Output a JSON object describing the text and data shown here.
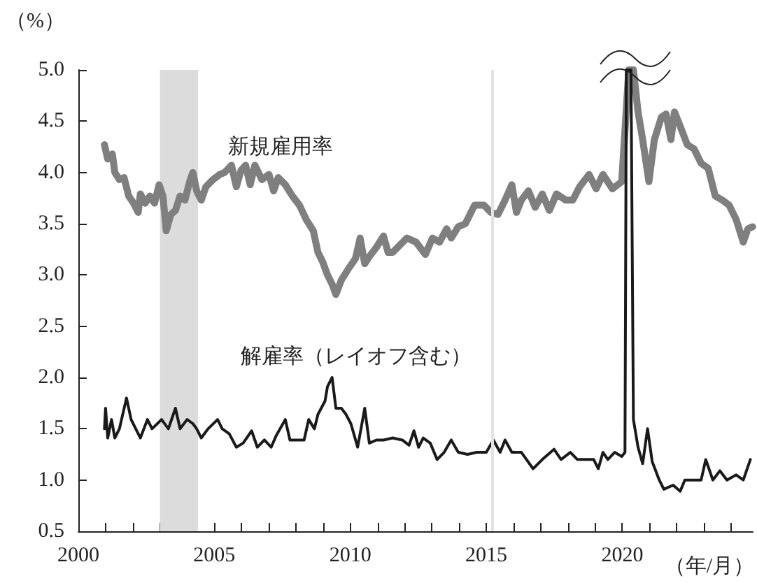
{
  "chart_data": {
    "type": "line",
    "ylabel": "（%）",
    "xlabel": "（年/月）",
    "xlim": [
      2000,
      2024.8
    ],
    "xticks": [
      2000,
      {
        "value": 2001,
        "label": null
      },
      {
        "value": 2002,
        "label": null
      },
      {
        "value": 2003,
        "label": null
      },
      {
        "value": 2004,
        "label": null
      },
      2005,
      {
        "value": 2006,
        "label": null
      },
      {
        "value": 2007,
        "label": null
      },
      {
        "value": 2008,
        "label": null
      },
      {
        "value": 2009,
        "label": null
      },
      2010,
      {
        "value": 2011,
        "label": null
      },
      {
        "value": 2012,
        "label": null
      },
      {
        "value": 2013,
        "label": null
      },
      {
        "value": 2014,
        "label": null
      },
      2015,
      {
        "value": 2016,
        "label": null
      },
      {
        "value": 2017,
        "label": null
      },
      {
        "value": 2018,
        "label": null
      },
      {
        "value": 2019,
        "label": null
      },
      2020,
      {
        "value": 2021,
        "label": null
      },
      {
        "value": 2022,
        "label": null
      },
      {
        "value": 2023,
        "label": null
      },
      {
        "value": 2024,
        "label": null
      }
    ],
    "ylim": [
      0.5,
      5
    ],
    "yticks": [
      0.5,
      {
        "value": 1,
        "label": "1.0"
      },
      1.5,
      {
        "value": 2,
        "label": "2.0"
      },
      2.5,
      {
        "value": 3,
        "label": "3.0"
      },
      3.5,
      {
        "value": 4,
        "label": "4.0"
      },
      4.5,
      {
        "value": 5,
        "label": "5.0"
      }
    ],
    "grid": false,
    "legend": false,
    "marker": "none",
    "line_style": "solid",
    "bands": [
      {
        "axis": "x",
        "from": 2003.0,
        "to": 2004.4,
        "color": "#dcdcdc"
      }
    ],
    "ref_lines": [
      {
        "axis": "x",
        "value": 2015.2,
        "color": "#e3e3e3"
      }
    ],
    "series": [
      {
        "name": "新規雇用率",
        "color": "#7f7f7f",
        "x": [
          2000.96,
          2001.08,
          2001.25,
          2001.34,
          2001.51,
          2001.68,
          2001.85,
          2002.03,
          2002.2,
          2002.28,
          2002.46,
          2002.63,
          2002.8,
          2002.97,
          2003.11,
          2003.23,
          2003.4,
          2003.57,
          2003.74,
          2003.92,
          2004.09,
          2004.21,
          2004.35,
          2004.52,
          2004.69,
          2004.95,
          2005.2,
          2005.38,
          2005.63,
          2005.81,
          2005.98,
          2006.15,
          2006.32,
          2006.49,
          2006.75,
          2007.01,
          2007.18,
          2007.35,
          2007.61,
          2007.87,
          2008.13,
          2008.38,
          2008.64,
          2008.81,
          2008.98,
          2009.16,
          2009.33,
          2009.47,
          2009.67,
          2009.93,
          2010.19,
          2010.36,
          2010.53,
          2010.7,
          2010.96,
          2011.22,
          2011.39,
          2011.56,
          2012.08,
          2012.42,
          2012.76,
          2013.02,
          2013.28,
          2013.54,
          2013.71,
          2013.97,
          2014.23,
          2014.57,
          2014.91,
          2015.17,
          2015.43,
          2015.69,
          2015.94,
          2016.11,
          2016.29,
          2016.55,
          2016.8,
          2017.06,
          2017.32,
          2017.58,
          2017.92,
          2018.18,
          2018.43,
          2018.78,
          2019.04,
          2019.29,
          2019.64,
          2019.98,
          2020.24,
          2020.41,
          2020.58,
          2020.75,
          2020.98,
          2021.18,
          2021.44,
          2021.61,
          2021.79,
          2021.92,
          2022.13,
          2022.39,
          2022.64,
          2022.9,
          2023.16,
          2023.42,
          2023.68,
          2023.93,
          2024.19,
          2024.45,
          2024.62,
          2024.79
        ],
        "values": [
          4.27,
          4.13,
          4.18,
          4.0,
          3.93,
          3.95,
          3.77,
          3.7,
          3.61,
          3.79,
          3.7,
          3.77,
          3.7,
          3.88,
          3.77,
          3.43,
          3.59,
          3.63,
          3.77,
          3.73,
          3.91,
          4.0,
          3.82,
          3.73,
          3.86,
          3.93,
          3.98,
          4.0,
          4.07,
          3.86,
          4.02,
          4.07,
          3.88,
          4.07,
          3.93,
          3.98,
          3.82,
          3.95,
          3.88,
          3.77,
          3.68,
          3.54,
          3.43,
          3.22,
          3.13,
          3.0,
          2.91,
          2.81,
          2.95,
          3.06,
          3.16,
          3.36,
          3.11,
          3.18,
          3.27,
          3.38,
          3.22,
          3.22,
          3.36,
          3.32,
          3.2,
          3.36,
          3.32,
          3.45,
          3.36,
          3.47,
          3.5,
          3.68,
          3.68,
          3.61,
          3.59,
          3.73,
          3.88,
          3.61,
          3.73,
          3.82,
          3.66,
          3.79,
          3.63,
          3.79,
          3.73,
          3.73,
          3.86,
          3.98,
          3.84,
          3.98,
          3.84,
          3.91,
          5.0,
          5.0,
          4.59,
          4.32,
          3.91,
          4.32,
          4.54,
          4.57,
          4.32,
          4.59,
          4.45,
          4.27,
          4.23,
          4.09,
          4.04,
          3.77,
          3.73,
          3.68,
          3.54,
          3.32,
          3.45,
          3.47
        ]
      },
      {
        "name": "解雇率（レイオフ含む）",
        "color": "#1a1a1a",
        "x": [
          2000.96,
          2001.0,
          2001.08,
          2001.22,
          2001.34,
          2001.51,
          2001.77,
          2001.94,
          2002.11,
          2002.28,
          2002.54,
          2002.71,
          2003.06,
          2003.31,
          2003.57,
          2003.74,
          2004.0,
          2004.21,
          2004.35,
          2004.52,
          2004.77,
          2005.12,
          2005.29,
          2005.55,
          2005.81,
          2006.06,
          2006.37,
          2006.58,
          2006.84,
          2007.09,
          2007.27,
          2007.61,
          2007.78,
          2008.04,
          2008.3,
          2008.47,
          2008.68,
          2008.81,
          2009.07,
          2009.16,
          2009.33,
          2009.47,
          2009.67,
          2009.84,
          2010.02,
          2010.27,
          2010.53,
          2010.7,
          2010.96,
          2011.22,
          2011.56,
          2011.91,
          2012.16,
          2012.34,
          2012.51,
          2012.68,
          2012.94,
          2013.19,
          2013.45,
          2013.71,
          2013.97,
          2014.31,
          2014.65,
          2015.0,
          2015.26,
          2015.51,
          2015.69,
          2015.94,
          2016.29,
          2016.72,
          2017.06,
          2017.49,
          2017.75,
          2018.09,
          2018.35,
          2018.95,
          2019.12,
          2019.29,
          2019.47,
          2019.72,
          2019.98,
          2020.1,
          2020.15,
          2020.32,
          2020.41,
          2020.58,
          2020.75,
          2020.93,
          2021.1,
          2021.36,
          2021.53,
          2021.87,
          2022.13,
          2022.3,
          2022.56,
          2022.9,
          2023.07,
          2023.33,
          2023.59,
          2023.85,
          2024.19,
          2024.45,
          2024.71
        ],
        "values": [
          1.5,
          1.7,
          1.41,
          1.59,
          1.41,
          1.5,
          1.8,
          1.59,
          1.5,
          1.41,
          1.59,
          1.5,
          1.59,
          1.5,
          1.7,
          1.5,
          1.59,
          1.55,
          1.5,
          1.41,
          1.5,
          1.59,
          1.5,
          1.45,
          1.32,
          1.36,
          1.48,
          1.32,
          1.39,
          1.32,
          1.43,
          1.59,
          1.39,
          1.39,
          1.39,
          1.59,
          1.5,
          1.64,
          1.77,
          1.91,
          2.0,
          1.7,
          1.7,
          1.64,
          1.55,
          1.32,
          1.7,
          1.36,
          1.39,
          1.39,
          1.41,
          1.39,
          1.34,
          1.48,
          1.32,
          1.41,
          1.36,
          1.2,
          1.27,
          1.39,
          1.27,
          1.25,
          1.27,
          1.27,
          1.39,
          1.27,
          1.39,
          1.27,
          1.27,
          1.11,
          1.2,
          1.3,
          1.2,
          1.27,
          1.2,
          1.2,
          1.11,
          1.27,
          1.2,
          1.27,
          1.23,
          1.27,
          5.0,
          5.0,
          1.59,
          1.32,
          1.16,
          1.5,
          1.18,
          1.0,
          0.91,
          0.95,
          0.89,
          1.0,
          1.0,
          1.0,
          1.2,
          1.0,
          1.09,
          1.0,
          1.05,
          1.0,
          1.2
        ]
      }
    ]
  }
}
